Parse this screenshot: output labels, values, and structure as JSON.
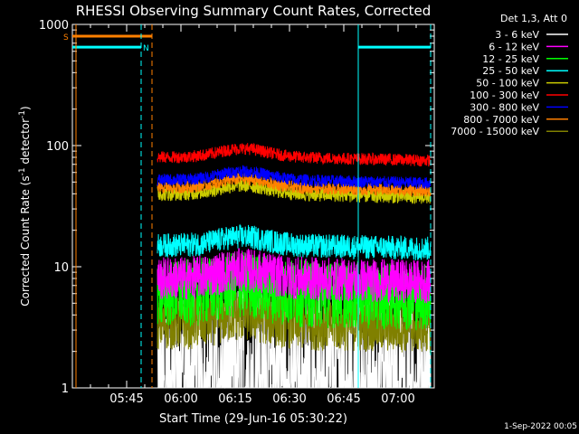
{
  "chart_data": {
    "type": "line",
    "title": "RHESSI Observing Summary Count Rates, Corrected",
    "xlabel": "Start Time (29-Jun-16 05:30:22)",
    "ylabel": "Corrected Count Rate (s",
    "ylabel_sup1": "-1",
    "ylabel_mid": " detector",
    "ylabel_sup2": "-1",
    "ylabel_end": ")",
    "y_scale": "log",
    "ylim": [
      1,
      1000
    ],
    "xlim_minutes": [
      0,
      100
    ],
    "x_ticks": [
      {
        "minute": 15,
        "label": "05:45"
      },
      {
        "minute": 30,
        "label": "06:00"
      },
      {
        "minute": 45,
        "label": "06:15"
      },
      {
        "minute": 60,
        "label": "06:30"
      },
      {
        "minute": 75,
        "label": "06:45"
      },
      {
        "minute": 90,
        "label": "07:00"
      }
    ],
    "y_ticks": [
      {
        "value": 1,
        "label": "1"
      },
      {
        "value": 10,
        "label": "10"
      },
      {
        "value": 100,
        "label": "100"
      },
      {
        "value": 1000,
        "label": "1000"
      }
    ],
    "legend_title": "Det 1,3, Att 0",
    "legend_position": "right",
    "series": [
      {
        "name": "3 - 6 keV",
        "color": "#ffffff",
        "base": 1.6,
        "noise": 0.6
      },
      {
        "name": "6 - 12 keV",
        "color": "#ff00ff",
        "base": 8,
        "noise": 0.18
      },
      {
        "name": "12 - 25 keV",
        "color": "#00ff00",
        "base": 6,
        "noise": 0.28
      },
      {
        "name": "25 - 50 keV",
        "color": "#00ffff",
        "base": 15,
        "noise": 0.1
      },
      {
        "name": "50 - 100 keV",
        "color": "#cccc00",
        "base": 40,
        "noise": 0.06
      },
      {
        "name": "100 - 300 keV",
        "color": "#ff0000",
        "base": 80,
        "noise": 0.05
      },
      {
        "name": "300 - 800 keV",
        "color": "#0000ff",
        "base": 52,
        "noise": 0.05
      },
      {
        "name": "800 - 7000 keV",
        "color": "#ff8000",
        "base": 45,
        "noise": 0.05
      },
      {
        "name": "7000 - 15000 keV",
        "color": "#808000",
        "base": 3.4,
        "noise": 0.22
      }
    ],
    "data_range_minutes": [
      23.5,
      99
    ],
    "flags": [
      {
        "label": "S",
        "color": "#ff8000",
        "value": 800,
        "x_start": 0,
        "x_end": 22
      },
      {
        "label": "N",
        "color": "#00ffff",
        "value": 650,
        "x_start": 0,
        "x_end": 19
      },
      {
        "label": "",
        "color": "#00ffff",
        "value": 650,
        "x_start": 79,
        "x_end": 99
      }
    ],
    "vlines": [
      {
        "minute": 1,
        "color": "#ff8000",
        "style": "solid"
      },
      {
        "minute": 19,
        "color": "#00ffff",
        "style": "dashed"
      },
      {
        "minute": 22,
        "color": "#ff8000",
        "style": "dashed"
      },
      {
        "minute": 79,
        "color": "#00ffff",
        "style": "solid"
      },
      {
        "minute": 99,
        "color": "#00ffff",
        "style": "dashed"
      }
    ]
  },
  "footer": {
    "date": "1-Sep-2022 00:05"
  }
}
